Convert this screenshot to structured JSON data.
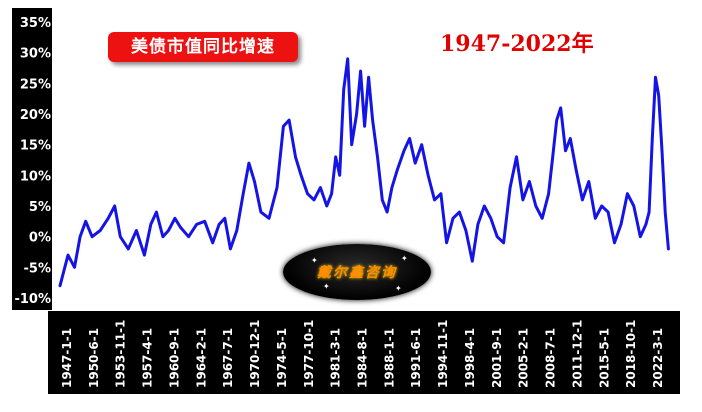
{
  "chart_data": {
    "type": "line",
    "title": "美债市值同比增速",
    "subtitle": "1947-2022年",
    "xlabel": "",
    "ylabel": "",
    "ylim": [
      -10,
      35
    ],
    "y_ticks": [
      "-10%",
      "-5%",
      "0%",
      "5%",
      "10%",
      "15%",
      "20%",
      "25%",
      "30%",
      "35%"
    ],
    "x_tick_labels": [
      "1947-1-1",
      "1950-6-1",
      "1953-11-1",
      "1957-4-1",
      "1960-9-1",
      "1964-2-1",
      "1967-7-1",
      "1970-12-1",
      "1974-5-1",
      "1977-10-1",
      "1981-3-1",
      "1984-8-1",
      "1988-1-1",
      "1991-6-1",
      "1994-11-1",
      "1998-4-1",
      "2001-9-1",
      "2005-2-1",
      "2008-7-1",
      "2011-12-1",
      "2015-5-1",
      "2018-10-1",
      "2022-3-1"
    ],
    "grid": false,
    "legend": "none",
    "line_color": "#1414e6",
    "series": [
      {
        "x": [
          1947.0,
          1948.0,
          1948.8,
          1949.5,
          1950.2,
          1951.0,
          1952.0,
          1953.0,
          1953.8,
          1954.5,
          1955.5,
          1956.5,
          1957.5,
          1958.3,
          1959.0,
          1959.8,
          1960.5,
          1961.3,
          1962.0,
          1963.0,
          1964.0,
          1965.0,
          1966.0,
          1966.8,
          1967.5,
          1968.2,
          1969.0,
          1969.8,
          1970.5,
          1971.2,
          1972.0,
          1973.0,
          1974.0,
          1974.8,
          1975.5,
          1976.3,
          1977.0,
          1977.8,
          1978.6,
          1979.4,
          1980.2,
          1980.8,
          1981.3,
          1981.8,
          1982.3,
          1982.8,
          1983.3,
          1983.9,
          1984.4,
          1984.9,
          1985.4,
          1985.9,
          1986.5,
          1987.1,
          1987.7,
          1988.3,
          1989.0,
          1989.8,
          1990.5,
          1991.2,
          1992.0,
          1992.8,
          1993.6,
          1994.4,
          1995.1,
          1995.9,
          1996.7,
          1997.5,
          1998.3,
          1999.0,
          1999.8,
          2000.6,
          2001.4,
          2002.2,
          2003.0,
          2003.8,
          2004.6,
          2005.4,
          2006.2,
          2007.0,
          2007.8,
          2008.3,
          2008.8,
          2009.3,
          2009.9,
          2010.5,
          2011.2,
          2012.0,
          2012.8,
          2013.6,
          2014.4,
          2015.2,
          2016.0,
          2016.8,
          2017.6,
          2018.4,
          2019.2,
          2019.9,
          2020.3,
          2020.7,
          2021.1,
          2021.5,
          2021.9,
          2022.3,
          2022.7
        ],
        "values": [
          -8,
          -3,
          -5,
          0,
          2.5,
          0,
          1,
          3,
          5,
          0,
          -2,
          1,
          -3,
          2,
          4,
          0,
          1,
          3,
          1.5,
          0,
          2,
          2.5,
          -1,
          2,
          3,
          -2,
          1,
          7,
          12,
          9,
          4,
          3,
          8,
          18,
          19,
          13,
          10,
          7,
          6,
          8,
          5,
          7,
          13,
          10,
          24,
          29,
          15,
          20,
          27,
          18,
          26,
          19,
          13,
          6,
          4,
          8,
          11,
          14,
          16,
          12,
          15,
          10,
          6,
          7,
          -1,
          3,
          4,
          1,
          -4,
          2,
          5,
          3,
          0,
          -1,
          8,
          13,
          6,
          9,
          5,
          3,
          7,
          13,
          19,
          21,
          14,
          16,
          11,
          6,
          9,
          3,
          5,
          4,
          -1,
          2,
          7,
          5,
          0,
          2,
          4,
          16,
          26,
          23,
          14,
          4,
          -2
        ]
      }
    ]
  },
  "watermark": {
    "text": "戴尔鑫咨询"
  }
}
